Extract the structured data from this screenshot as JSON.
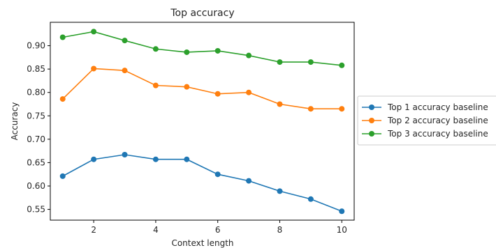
{
  "chart_data": {
    "type": "line",
    "title": "Top accuracy",
    "xlabel": "Context length",
    "ylabel": "Accuracy",
    "x": [
      1,
      2,
      3,
      4,
      5,
      6,
      7,
      8,
      9,
      10
    ],
    "xlim": [
      0.6,
      10.4
    ],
    "ylim": [
      0.527,
      0.95
    ],
    "xticks": [
      2,
      4,
      6,
      8,
      10
    ],
    "yticks": [
      0.55,
      0.6,
      0.65,
      0.7,
      0.75,
      0.8,
      0.85,
      0.9
    ],
    "grid": false,
    "legend_position": "outside-right",
    "series": [
      {
        "name": "Top 1 accuracy baseline",
        "color": "#1f77b4",
        "values": [
          0.621,
          0.657,
          0.667,
          0.657,
          0.657,
          0.625,
          0.611,
          0.589,
          0.572,
          0.546
        ]
      },
      {
        "name": "Top 2 accuracy baseline",
        "color": "#ff7f0e",
        "values": [
          0.786,
          0.851,
          0.847,
          0.815,
          0.812,
          0.797,
          0.8,
          0.775,
          0.765,
          0.765
        ]
      },
      {
        "name": "Top 3 accuracy baseline",
        "color": "#2ca02c",
        "values": [
          0.918,
          0.93,
          0.911,
          0.893,
          0.886,
          0.889,
          0.879,
          0.865,
          0.865,
          0.858
        ]
      }
    ]
  }
}
